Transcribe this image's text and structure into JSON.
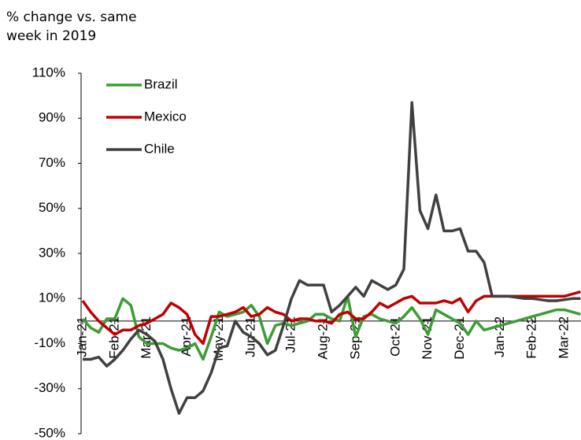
{
  "chart_data": {
    "type": "line",
    "y_axis_label": "% change vs. same week in 2019",
    "categories": [
      "Jan-21",
      null,
      null,
      null,
      "Feb-21",
      null,
      null,
      null,
      "Mar-21",
      null,
      null,
      null,
      null,
      "Apr-21",
      null,
      null,
      null,
      "May-21",
      null,
      null,
      null,
      "Jun-21",
      null,
      null,
      null,
      null,
      "Jul-21",
      null,
      null,
      null,
      "Aug-21",
      null,
      null,
      null,
      "Sep-21",
      null,
      null,
      null,
      null,
      "Oct-21",
      null,
      null,
      null,
      "Nov-21",
      null,
      null,
      null,
      "Dec-21",
      null,
      null,
      null,
      null,
      "Jan-22",
      null,
      null,
      null,
      "Feb-22",
      null,
      null,
      null,
      "Mar-22",
      null,
      null
    ],
    "series": [
      {
        "name": "Brazil",
        "color": "#3c9c35",
        "values": [
          1,
          -3,
          -5,
          1,
          1,
          10,
          7,
          -7,
          -10,
          -10,
          -10,
          -12,
          -13,
          -12,
          -10,
          -17,
          -7,
          4,
          2,
          3,
          4,
          7,
          2,
          -10,
          -2,
          -1,
          -2,
          -1,
          0,
          3,
          3,
          1,
          0,
          11,
          -7,
          2,
          3,
          1,
          0,
          -1,
          2,
          6,
          1,
          -6,
          5,
          3,
          1,
          -1,
          -6,
          0,
          -4,
          -3,
          -2,
          -1,
          0,
          1,
          2,
          3,
          4,
          5,
          5,
          4,
          3
        ]
      },
      {
        "name": "Mexico",
        "color": "#c00000",
        "values": [
          9,
          4,
          0,
          -3,
          -6,
          -4,
          -4,
          -2,
          -1,
          1,
          3,
          8,
          6,
          3,
          -6,
          -10,
          2,
          2,
          3,
          4,
          6,
          2,
          3,
          6,
          4,
          3,
          0,
          1,
          1,
          0,
          0,
          -1,
          3,
          4,
          1,
          1,
          4,
          8,
          6,
          8,
          10,
          11,
          8,
          8,
          8,
          9,
          8,
          10,
          4,
          9,
          11,
          11,
          11,
          11,
          11,
          11,
          11,
          11,
          11,
          11,
          11,
          12,
          13
        ]
      },
      {
        "name": "Chile",
        "color": "#404040",
        "values": [
          -17,
          -17,
          -16,
          -20,
          -17,
          -13,
          -8,
          -4,
          -6,
          -9,
          -17,
          -30,
          -41,
          -34,
          -34,
          -31,
          -23,
          -12,
          -11,
          0,
          -5,
          -7,
          -10,
          -15,
          -13,
          -2,
          10,
          18,
          16,
          16,
          16,
          4,
          7,
          11,
          15,
          11,
          18,
          16,
          14,
          16,
          23,
          97,
          49,
          41,
          56,
          40,
          40,
          41,
          31,
          31,
          26,
          11,
          11,
          11,
          10.5,
          10,
          10,
          9.5,
          9,
          9,
          9.5,
          10,
          10
        ]
      }
    ],
    "ylim": [
      -50,
      110
    ],
    "yticks": [
      {
        "value": -50,
        "label": "-50%"
      },
      {
        "value": -30,
        "label": "-30%"
      },
      {
        "value": -10,
        "label": "-10%"
      },
      {
        "value": 10,
        "label": "10%"
      },
      {
        "value": 30,
        "label": "30%"
      },
      {
        "value": 50,
        "label": "50%"
      },
      {
        "value": 70,
        "label": "70%"
      },
      {
        "value": 90,
        "label": "90%"
      },
      {
        "value": 110,
        "label": "110%"
      }
    ],
    "legend": "upper left"
  }
}
